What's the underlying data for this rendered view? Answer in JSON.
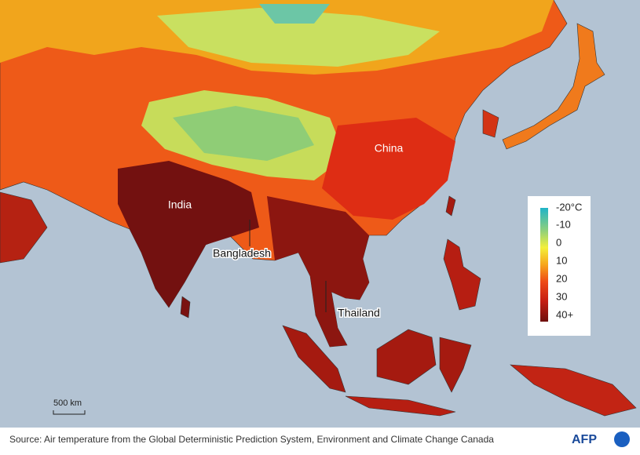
{
  "map": {
    "labels": [
      "India",
      "China",
      "Bangladesh",
      "Thailand"
    ]
  },
  "legend": {
    "labels": [
      "-20°C",
      "-10",
      "0",
      "10",
      "20",
      "30",
      "40+"
    ]
  },
  "scale_bar": "500 km",
  "source": "Source: Air temperature from the Global Deterministic Prediction System, Environment and Climate Change Canada",
  "logo": "AFP"
}
